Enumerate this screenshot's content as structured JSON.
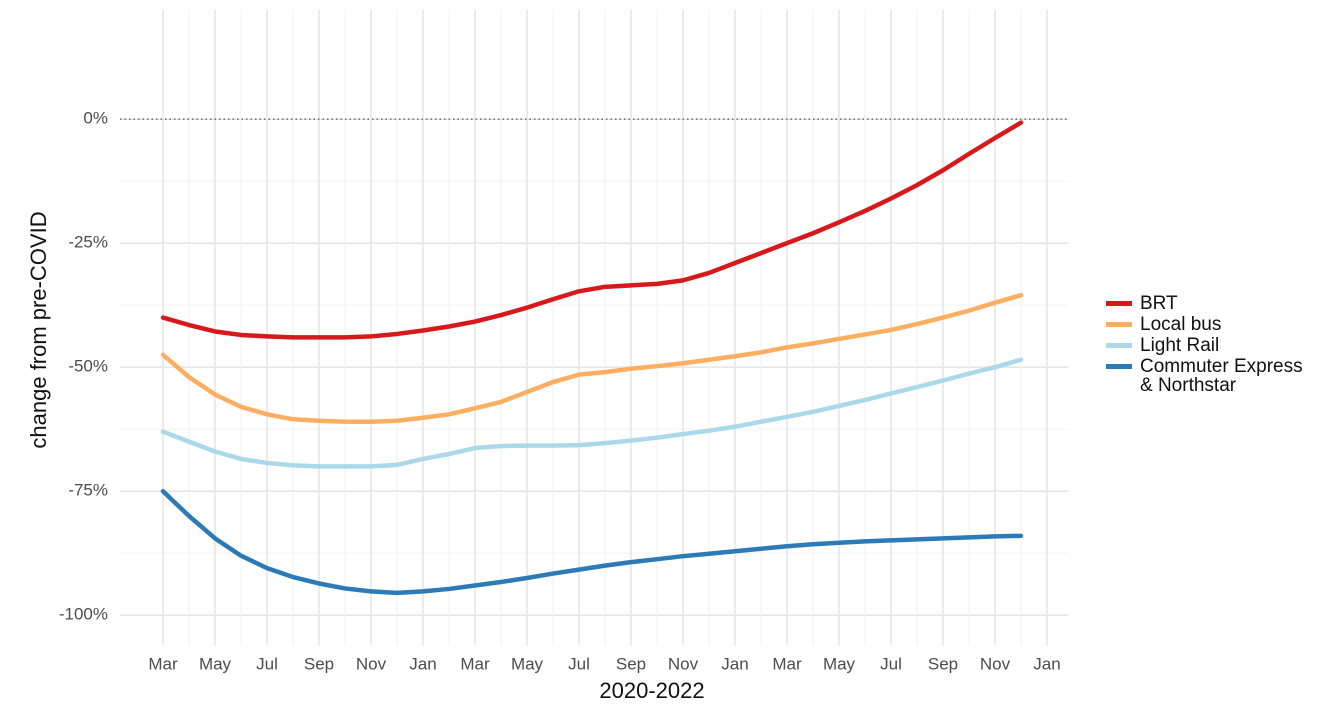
{
  "chart_data": {
    "type": "line",
    "xlabel": "2020-2022",
    "ylabel": "change from pre-COVID",
    "categories": [
      "Mar",
      null,
      "May",
      null,
      "Jul",
      null,
      "Sep",
      null,
      "Nov",
      null,
      "Jan",
      null,
      "Mar",
      null,
      "May",
      null,
      "Jul",
      null,
      "Sep",
      null,
      "Nov",
      null,
      "Jan",
      null,
      "Mar",
      null,
      "May",
      null,
      "Jul",
      null,
      "Sep",
      null,
      "Nov",
      null,
      "Jan"
    ],
    "series": [
      {
        "name": "BRT",
        "color": "#d7191c",
        "values": [
          -40,
          -41.5,
          -42.8,
          -43.5,
          -43.8,
          -44,
          -44,
          -44,
          -43.8,
          -43.3,
          -42.6,
          -41.8,
          -40.8,
          -39.5,
          -38,
          -36.3,
          -34.7,
          -33.8,
          -33.5,
          -33.2,
          -32.5,
          -31,
          -29,
          -27,
          -25,
          -23,
          -20.8,
          -18.5,
          -16,
          -13.3,
          -10.3,
          -7,
          -3.8,
          -0.7,
          null
        ]
      },
      {
        "name": "Local bus",
        "color": "#fdae61",
        "values": [
          -47.5,
          -52,
          -55.5,
          -58,
          -59.5,
          -60.5,
          -60.8,
          -61,
          -61,
          -60.8,
          -60.2,
          -59.5,
          -58.3,
          -57,
          -55,
          -53,
          -51.5,
          -51,
          -50.3,
          -49.8,
          -49.2,
          -48.5,
          -47.8,
          -47,
          -46,
          -45.2,
          -44.3,
          -43.4,
          -42.5,
          -41.3,
          -40,
          -38.6,
          -37,
          -35.5,
          null
        ]
      },
      {
        "name": "Light Rail",
        "color": "#abd9e9",
        "values": [
          -63,
          -65,
          -67,
          -68.5,
          -69.3,
          -69.8,
          -70,
          -70,
          -70,
          -69.7,
          -68.5,
          -67.5,
          -66.3,
          -65.9,
          -65.8,
          -65.8,
          -65.7,
          -65.3,
          -64.8,
          -64.2,
          -63.5,
          -62.8,
          -62,
          -61,
          -60,
          -59,
          -57.8,
          -56.6,
          -55.3,
          -54,
          -52.7,
          -51.3,
          -50,
          -48.5,
          null
        ]
      },
      {
        "name": "Commuter Express & Northstar",
        "color": "#2c7bb6",
        "values": [
          -75,
          -80,
          -84.5,
          -88,
          -90.5,
          -92.3,
          -93.6,
          -94.6,
          -95.2,
          -95.5,
          -95.2,
          -94.7,
          -94,
          -93.3,
          -92.5,
          -91.6,
          -90.8,
          -90,
          -89.3,
          -88.7,
          -88.1,
          -87.6,
          -87.1,
          -86.6,
          -86.1,
          -85.7,
          -85.4,
          -85.1,
          -84.9,
          -84.7,
          -84.5,
          -84.3,
          -84.1,
          -84,
          null
        ]
      }
    ],
    "ylim": [
      -106,
      22
    ],
    "yticks": [
      {
        "value": -100,
        "label": "-100%"
      },
      {
        "value": -75,
        "label": "-75%"
      },
      {
        "value": -50,
        "label": "-50%"
      },
      {
        "value": -25,
        "label": "-25%"
      },
      {
        "value": 0,
        "label": "0%"
      }
    ],
    "reference_line": 0,
    "grid": true,
    "legend": "right"
  }
}
